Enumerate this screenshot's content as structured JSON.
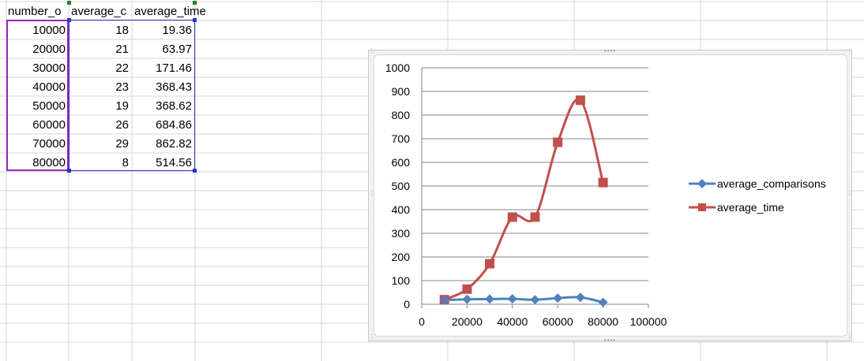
{
  "sheet": {
    "headers": [
      "number_o",
      "average_c",
      "average_time"
    ],
    "rows": [
      [
        "10000",
        "18",
        "19.36"
      ],
      [
        "20000",
        "21",
        "63.97"
      ],
      [
        "30000",
        "22",
        "171.46"
      ],
      [
        "40000",
        "23",
        "368.43"
      ],
      [
        "50000",
        "19",
        "368.62"
      ],
      [
        "60000",
        "26",
        "684.86"
      ],
      [
        "70000",
        "29",
        "862.82"
      ],
      [
        "80000",
        "8",
        "514.56"
      ]
    ]
  },
  "chart_data": {
    "type": "scatter",
    "title": "",
    "x": [
      10000,
      20000,
      30000,
      40000,
      50000,
      60000,
      70000,
      80000
    ],
    "series": [
      {
        "name": "average_comparisons",
        "values": [
          18,
          21,
          22,
          23,
          19,
          26,
          29,
          8
        ],
        "color": "#4f81bd",
        "marker": "diamond"
      },
      {
        "name": "average_time",
        "values": [
          19.36,
          63.97,
          171.46,
          368.43,
          368.62,
          684.86,
          862.82,
          514.56
        ],
        "color": "#c0504d",
        "marker": "square"
      }
    ],
    "xlim": [
      0,
      100000
    ],
    "ylim": [
      0,
      1000
    ],
    "xticks": [
      0,
      20000,
      40000,
      60000,
      80000,
      100000
    ],
    "yticks": [
      0,
      100,
      200,
      300,
      400,
      500,
      600,
      700,
      800,
      900,
      1000
    ],
    "xtick_labels": [
      "0",
      "20000",
      "40000",
      "60000",
      "80000",
      "100000"
    ],
    "ytick_labels": [
      "0",
      "100",
      "200",
      "300",
      "400",
      "500",
      "600",
      "700",
      "800",
      "900",
      "1000"
    ],
    "grid": "horizontal",
    "legend": "right",
    "smooth": true
  },
  "colors": {
    "grid_line": "#d4d4d4",
    "chart_grid": "#868686",
    "selection": "#a020c0"
  }
}
